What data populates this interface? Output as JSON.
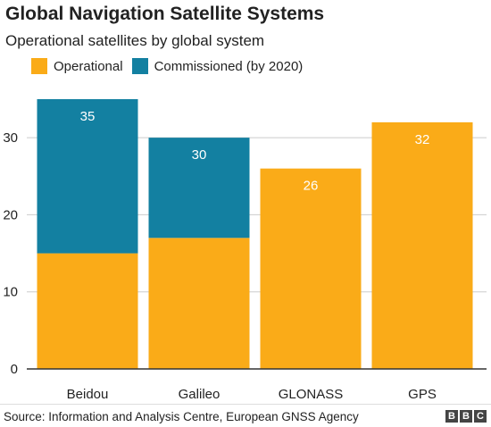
{
  "colors": {
    "operational": "#faab18",
    "commissioned": "#1380a1",
    "grid": "#cbcbcb",
    "axis": "#333333"
  },
  "chart_data": {
    "type": "bar",
    "stacked": true,
    "title": "Global Navigation Satellite Systems",
    "subtitle": "Operational satellites by global system",
    "categories": [
      "Beidou",
      "Galileo",
      "GLONASS",
      "GPS"
    ],
    "series": [
      {
        "name": "Operational",
        "values": [
          15,
          17,
          26,
          32
        ]
      },
      {
        "name": "Commissioned (by 2020)",
        "values": [
          20,
          13,
          0,
          0
        ]
      }
    ],
    "totals": [
      35,
      30,
      26,
      32
    ],
    "ylim": [
      0,
      35
    ],
    "yticks": [
      "0",
      "10",
      "20",
      "30"
    ],
    "grid": true,
    "legend": "top-left"
  },
  "footer": {
    "source": "Source: Information and Analysis Centre, European GNSS Agency",
    "logo_letters": [
      "B",
      "B",
      "C"
    ]
  }
}
